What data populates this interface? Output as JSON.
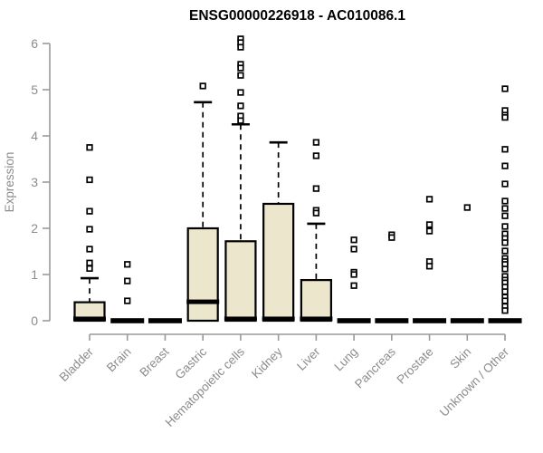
{
  "chart_data": {
    "type": "boxplot",
    "title": "ENSG00000226918 - AC010086.1",
    "ylabel": "Expression",
    "xlabel": "",
    "ylim": [
      0,
      6
    ],
    "yticks": [
      0,
      1,
      2,
      3,
      4,
      5,
      6
    ],
    "grid": false,
    "legend": "none",
    "categories": [
      "Bladder",
      "Brain",
      "Breast",
      "Gastric",
      "Hematopoietic cells",
      "Kidney",
      "Liver",
      "Lung",
      "Pancreas",
      "Prostate",
      "Skin",
      "Unknown / Other"
    ],
    "boxes": [
      {
        "category": "Bladder",
        "q1": 0,
        "median": 0.04,
        "q3": 0.4,
        "whisker_low": 0,
        "whisker_high": 0.92,
        "outliers": [
          3.75,
          3.05,
          2.37,
          1.98,
          1.55,
          1.25,
          1.13
        ]
      },
      {
        "category": "Brain",
        "q1": 0,
        "median": 0,
        "q3": 0,
        "whisker_low": 0,
        "whisker_high": 0,
        "outliers": [
          1.22,
          0.86,
          0.43
        ]
      },
      {
        "category": "Breast",
        "q1": 0,
        "median": 0,
        "q3": 0,
        "whisker_low": 0,
        "whisker_high": 0,
        "outliers": []
      },
      {
        "category": "Gastric",
        "q1": 0,
        "median": 0.41,
        "q3": 2.0,
        "whisker_low": 0,
        "whisker_high": 4.73,
        "outliers": [
          5.08
        ]
      },
      {
        "category": "Hematopoietic cells",
        "q1": 0,
        "median": 0.04,
        "q3": 1.72,
        "whisker_low": 0,
        "whisker_high": 4.25,
        "outliers": [
          6.1,
          6.02,
          5.92,
          5.55,
          5.47,
          5.31,
          4.94,
          4.65,
          4.43,
          4.33
        ]
      },
      {
        "category": "Kidney",
        "q1": 0,
        "median": 0.04,
        "q3": 2.53,
        "whisker_low": 0,
        "whisker_high": 3.86,
        "outliers": []
      },
      {
        "category": "Liver",
        "q1": 0,
        "median": 0.04,
        "q3": 0.88,
        "whisker_low": 0,
        "whisker_high": 2.1,
        "outliers": [
          3.86,
          3.57,
          2.86,
          2.39,
          2.33
        ]
      },
      {
        "category": "Lung",
        "q1": 0,
        "median": 0,
        "q3": 0,
        "whisker_low": 0,
        "whisker_high": 0,
        "outliers": [
          1.75,
          1.55,
          1.05,
          1.0,
          0.76
        ]
      },
      {
        "category": "Pancreas",
        "q1": 0,
        "median": 0,
        "q3": 0,
        "whisker_low": 0,
        "whisker_high": 0,
        "outliers": [
          1.86,
          1.8
        ]
      },
      {
        "category": "Prostate",
        "q1": 0,
        "median": 0,
        "q3": 0,
        "whisker_low": 0,
        "whisker_high": 0,
        "outliers": [
          2.63,
          2.08,
          1.94,
          1.28,
          1.18
        ]
      },
      {
        "category": "Skin",
        "q1": 0,
        "median": 0,
        "q3": 0,
        "whisker_low": 0,
        "whisker_high": 0,
        "outliers": [
          2.45
        ]
      },
      {
        "category": "Unknown / Other",
        "q1": 0,
        "median": 0,
        "q3": 0,
        "whisker_low": 0,
        "whisker_high": 0,
        "outliers": [
          5.02,
          4.55,
          4.45,
          4.4,
          3.71,
          3.35,
          2.96,
          2.59,
          2.43,
          2.27,
          2.04,
          1.88,
          1.78,
          1.69,
          1.51,
          1.35,
          1.28,
          1.22,
          1.12,
          0.96,
          0.88,
          0.82,
          0.73,
          0.63,
          0.51,
          0.43,
          0.31,
          0.22
        ]
      }
    ],
    "style": {
      "box_fill": "#ECE6CD",
      "box_stroke": "#000000",
      "median_color": "#000000",
      "whisker_color": "#000000",
      "outlier_stroke": "#000000",
      "outlier_fill": "#ffffff",
      "axis_color": "#999999",
      "tick_label_color": "#8c8c8c",
      "title_color": "#000000",
      "background": "#ffffff"
    }
  }
}
